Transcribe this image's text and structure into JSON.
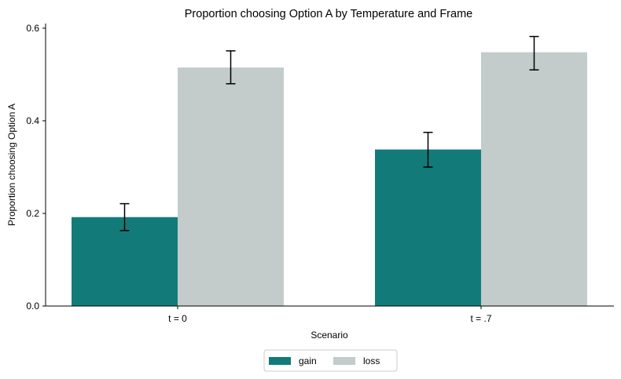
{
  "chart_data": {
    "type": "bar",
    "title": "Proportion choosing Option A by Temperature and Frame",
    "xlabel": "Scenario",
    "ylabel": "Proportion choosing Option A",
    "categories": [
      "t = 0",
      "t = .7"
    ],
    "ylim": [
      0,
      0.61
    ],
    "yticks": [
      0.0,
      0.2,
      0.4,
      0.6
    ],
    "ytick_labels": [
      "0.0",
      "0.2",
      "0.4",
      "0.6"
    ],
    "series": [
      {
        "name": "gain",
        "color": "#127b7a",
        "values": [
          0.192,
          0.338
        ],
        "err_low": [
          0.163,
          0.3
        ],
        "err_high": [
          0.221,
          0.375
        ]
      },
      {
        "name": "loss",
        "color": "#c3ccca",
        "values": [
          0.515,
          0.548
        ],
        "err_low": [
          0.48,
          0.51
        ],
        "err_high": [
          0.551,
          0.582
        ]
      }
    ],
    "legend_position": "bottom-center",
    "grid": false
  }
}
